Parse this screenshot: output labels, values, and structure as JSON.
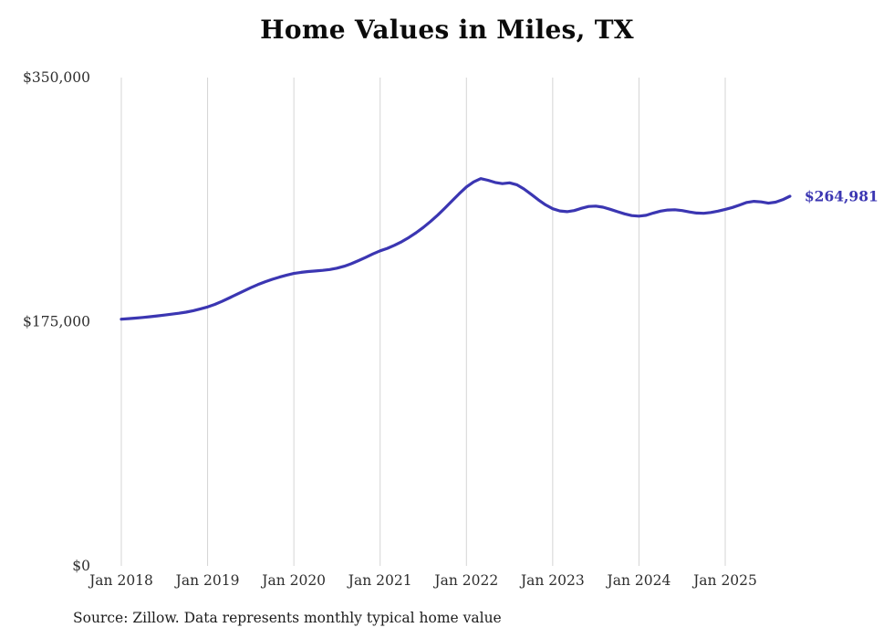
{
  "chart_data": {
    "type": "line",
    "title": "Home Values in Miles, TX",
    "series_name": "Monthly typical home value",
    "unit": "USD",
    "x_start": "Jan 2018",
    "x_end": "Oct 2025",
    "x_frequency": "monthly",
    "x_tick_labels": [
      "Jan 2018",
      "Jan 2019",
      "Jan 2020",
      "Jan 2021",
      "Jan 2022",
      "Jan 2023",
      "Jan 2024",
      "Jan 2025"
    ],
    "y_ticks": [
      {
        "label": "$0",
        "value": 0
      },
      {
        "label": "$175,000",
        "value": 175000
      },
      {
        "label": "$350,000",
        "value": 350000
      }
    ],
    "ylim": [
      0,
      350000
    ],
    "grid": "vertical-only",
    "legend": "none",
    "end_label": "$264,981",
    "end_value": 264981,
    "line_color": "#3b36b2",
    "grid_color": "#d4d4d4",
    "text_color": "#2e2e2e",
    "values": [
      176800,
      177200,
      177600,
      178100,
      178600,
      179200,
      179800,
      180400,
      181100,
      181900,
      182900,
      184200,
      185600,
      187400,
      189600,
      192000,
      194500,
      197000,
      199400,
      201600,
      203600,
      205400,
      207000,
      208400,
      209600,
      210400,
      211000,
      211400,
      211800,
      212400,
      213400,
      214800,
      216600,
      218800,
      221200,
      223600,
      225800,
      227600,
      229800,
      232400,
      235400,
      238800,
      242600,
      246800,
      251400,
      256400,
      261600,
      266800,
      271600,
      275200,
      277600,
      276400,
      274800,
      274000,
      274600,
      273200,
      270200,
      266400,
      262400,
      258800,
      256000,
      254400,
      253900,
      254700,
      256300,
      257600,
      257900,
      257100,
      255600,
      253900,
      252300,
      251100,
      250700,
      251300,
      252900,
      254300,
      255100,
      255300,
      254700,
      253700,
      252900,
      252700,
      253300,
      254300,
      255500,
      256900,
      258700,
      260500,
      261300,
      260900,
      260000,
      260700,
      262500,
      264981
    ]
  },
  "source": {
    "text": "Source: Zillow. Data represents monthly typical home value"
  }
}
